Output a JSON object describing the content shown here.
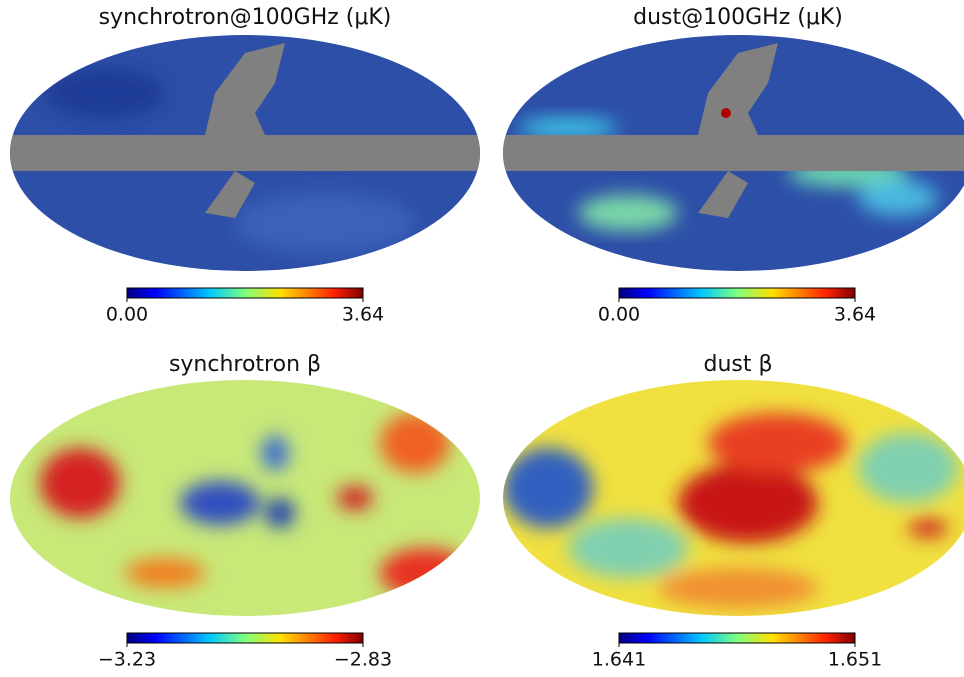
{
  "panels": [
    {
      "title": "synchrotron@100GHz (μK)",
      "colorbar": {
        "ticks": [
          {
            "value": 0,
            "label": "0.00"
          },
          3.64
        ]
      }
    },
    {
      "title": "dust@100GHz (μK)",
      "colorbar": {
        "ticks": [
          {
            "value": 0,
            "label": "0.00"
          },
          3.64
        ]
      }
    },
    {
      "title": "synchrotron β",
      "colorbar": {
        "ticks": [
          {
            "value": -3.23,
            "label": "−3.23"
          },
          {
            "value": -2.83,
            "label": "−2.83"
          }
        ]
      }
    },
    {
      "title": "dust β",
      "colorbar": {
        "ticks": [
          1.641,
          1.651
        ]
      }
    }
  ]
}
